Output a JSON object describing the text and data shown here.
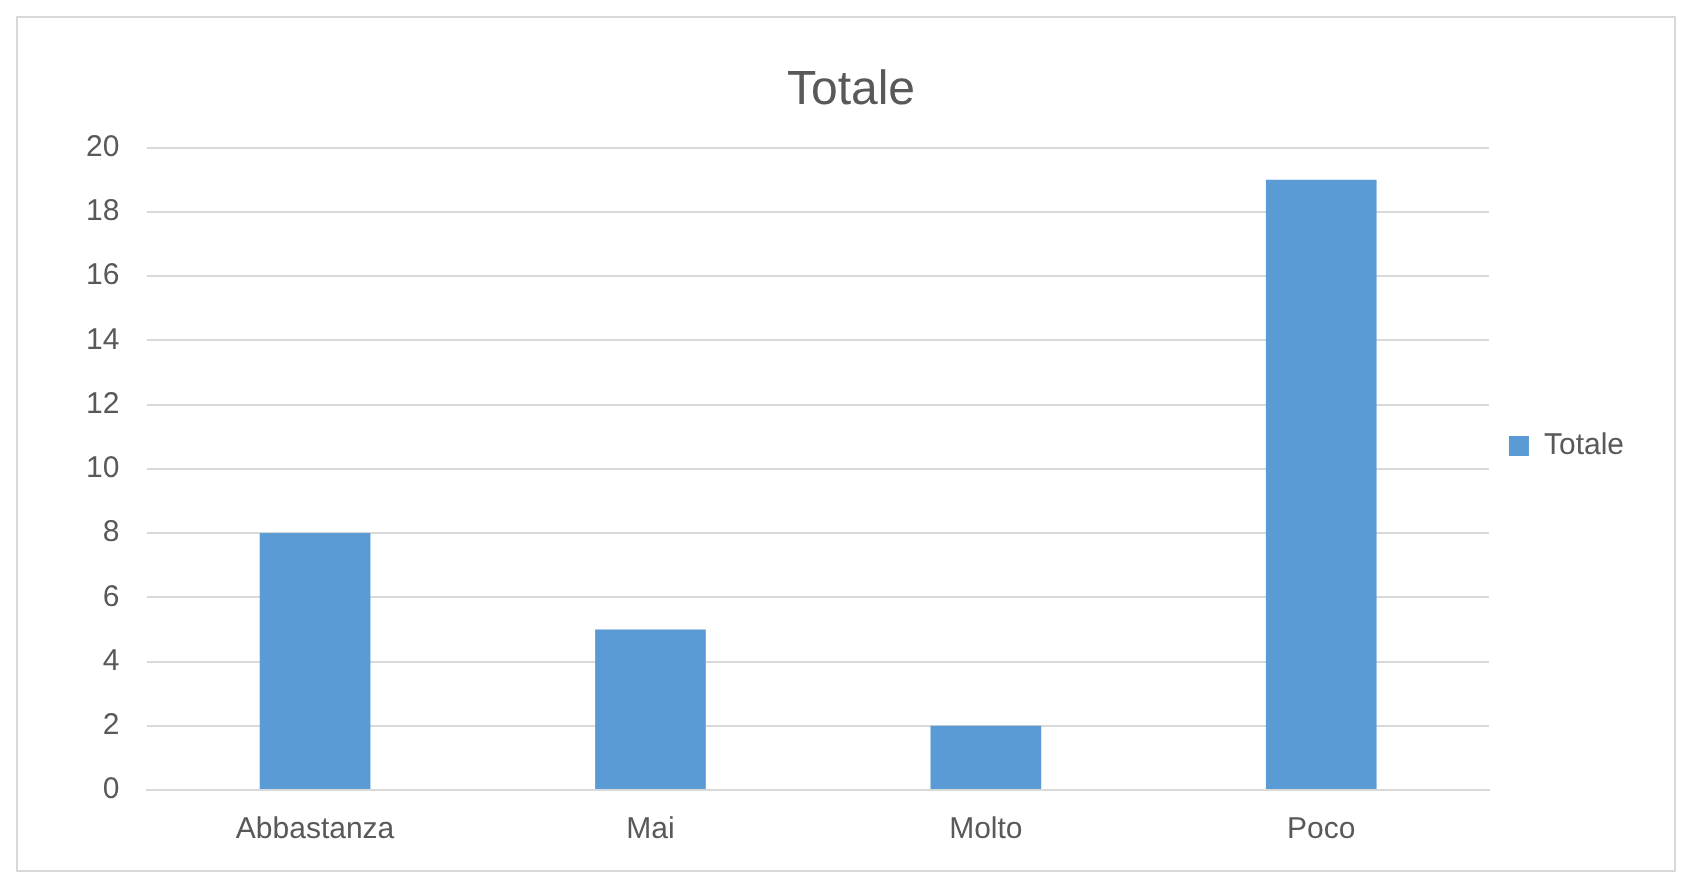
{
  "chart_data": {
    "type": "bar",
    "title": "Totale",
    "categories": [
      "Abbastanza",
      "Mai",
      "Molto",
      "Poco"
    ],
    "series": [
      {
        "name": "Totale",
        "color": "#5b9bd5",
        "values": [
          8,
          5,
          2,
          19
        ]
      }
    ],
    "ylim": [
      0,
      20
    ],
    "yticks": [
      0,
      2,
      4,
      6,
      8,
      10,
      12,
      14,
      16,
      18,
      20
    ],
    "grid": "y",
    "legend": "right"
  }
}
